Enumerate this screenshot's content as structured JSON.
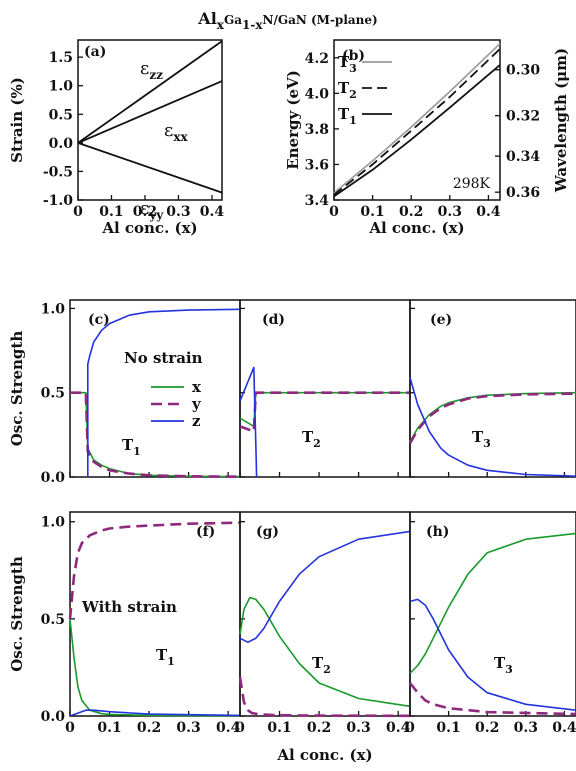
{
  "figure": {
    "title_parts": [
      "Al",
      "x",
      "Ga",
      "1-x",
      "N/GaN (M-plane)"
    ]
  },
  "colors": {
    "x": "#1a9a2a",
    "y": "#8e2a7e",
    "z": "#2233dd",
    "ink": "#111111",
    "t3_gray": "#999999"
  },
  "chart_data": [
    {
      "id": "a",
      "type": "line",
      "panel_label": "(a)",
      "xlabel": "Al conc. (x)",
      "ylabel": "Strain (%)",
      "xlim": [
        0,
        0.43
      ],
      "ylim": [
        -1.0,
        1.8
      ],
      "xticks": [
        "0",
        "0.1",
        "0.2",
        "0.3",
        "0.4"
      ],
      "yticks": [
        "-1.0",
        "-0.5",
        "0.0",
        "0.5",
        "1.0",
        "1.5"
      ],
      "series": [
        {
          "name": "ε_zz",
          "x": [
            0,
            0.43
          ],
          "y": [
            0.0,
            1.78
          ]
        },
        {
          "name": "ε_xx",
          "x": [
            0,
            0.43
          ],
          "y": [
            0.0,
            1.08
          ]
        },
        {
          "name": "ε_yy",
          "x": [
            0,
            0.43
          ],
          "y": [
            0.0,
            -0.87
          ]
        }
      ]
    },
    {
      "id": "b",
      "type": "line",
      "panel_label": "(b)",
      "xlabel": "Al conc. (x)",
      "ylabel": "Energy (eV)",
      "ylabel_right": "Wavelength (μm)",
      "xlim": [
        0,
        0.43
      ],
      "ylim": [
        3.4,
        4.3
      ],
      "xticks": [
        "0",
        "0.1",
        "0.2",
        "0.3",
        "0.4"
      ],
      "yticks": [
        "3.4",
        "3.6",
        "3.8",
        "4.0",
        "4.2"
      ],
      "yticks_right": [
        "0.30",
        "0.32",
        "0.34",
        "0.36"
      ],
      "annotation": "298K",
      "series": [
        {
          "name": "T3",
          "x": [
            0,
            0.1,
            0.2,
            0.3,
            0.43
          ],
          "y": [
            3.44,
            3.62,
            3.81,
            4.01,
            4.28
          ]
        },
        {
          "name": "T2",
          "x": [
            0,
            0.1,
            0.2,
            0.3,
            0.43
          ],
          "y": [
            3.43,
            3.6,
            3.79,
            3.98,
            4.25
          ]
        },
        {
          "name": "T1",
          "x": [
            0,
            0.1,
            0.2,
            0.3,
            0.43
          ],
          "y": [
            3.42,
            3.57,
            3.74,
            3.92,
            4.16
          ]
        }
      ]
    },
    {
      "id": "c",
      "type": "line",
      "panel_label": "(c)",
      "text": "No strain",
      "band": "T1",
      "ylabel": "Osc. Strength",
      "xlim": [
        0,
        0.43
      ],
      "ylim": [
        0,
        1.05
      ],
      "yticks": [
        "0.0",
        "0.5",
        "1.0"
      ],
      "legend": [
        "x",
        "y",
        "z"
      ],
      "series": [
        {
          "name": "x",
          "x": [
            0,
            0.04,
            0.045,
            0.06,
            0.08,
            0.1,
            0.15,
            0.2,
            0.3,
            0.43
          ],
          "y": [
            0.5,
            0.5,
            0.17,
            0.1,
            0.07,
            0.05,
            0.02,
            0.01,
            0.004,
            0.002
          ]
        },
        {
          "name": "y",
          "x": [
            0,
            0.04,
            0.045,
            0.06,
            0.08,
            0.1,
            0.15,
            0.2,
            0.3,
            0.43
          ],
          "y": [
            0.5,
            0.5,
            0.15,
            0.09,
            0.06,
            0.04,
            0.02,
            0.01,
            0.004,
            0.002
          ]
        },
        {
          "name": "z",
          "x": [
            0.045,
            0.045,
            0.05,
            0.06,
            0.08,
            0.1,
            0.15,
            0.2,
            0.3,
            0.43
          ],
          "y": [
            0,
            0.67,
            0.72,
            0.8,
            0.87,
            0.91,
            0.96,
            0.98,
            0.99,
            0.995
          ]
        }
      ]
    },
    {
      "id": "d",
      "type": "line",
      "panel_label": "(d)",
      "band": "T2",
      "xlim": [
        0,
        0.43
      ],
      "ylim": [
        0,
        1.05
      ],
      "series": [
        {
          "name": "x",
          "x": [
            0,
            0.035,
            0.04,
            0.1,
            0.2,
            0.43
          ],
          "y": [
            0.35,
            0.3,
            0.5,
            0.5,
            0.5,
            0.5
          ]
        },
        {
          "name": "y",
          "x": [
            0,
            0.035,
            0.04,
            0.1,
            0.2,
            0.43
          ],
          "y": [
            0.3,
            0.27,
            0.5,
            0.5,
            0.5,
            0.5
          ]
        },
        {
          "name": "z",
          "x": [
            0,
            0.035,
            0.04,
            0.042
          ],
          "y": [
            0.45,
            0.65,
            0.2,
            0.0
          ]
        }
      ]
    },
    {
      "id": "e",
      "type": "line",
      "panel_label": "(e)",
      "band": "T3",
      "xlim": [
        0,
        0.43
      ],
      "ylim": [
        0,
        1.05
      ],
      "series": [
        {
          "name": "x",
          "x": [
            0,
            0.02,
            0.05,
            0.08,
            0.1,
            0.15,
            0.2,
            0.3,
            0.43
          ],
          "y": [
            0.21,
            0.29,
            0.37,
            0.42,
            0.44,
            0.47,
            0.485,
            0.495,
            0.5
          ]
        },
        {
          "name": "y",
          "x": [
            0,
            0.02,
            0.05,
            0.08,
            0.1,
            0.15,
            0.2,
            0.3,
            0.43
          ],
          "y": [
            0.2,
            0.28,
            0.36,
            0.41,
            0.43,
            0.465,
            0.48,
            0.49,
            0.495
          ]
        },
        {
          "name": "z",
          "x": [
            0,
            0.02,
            0.05,
            0.08,
            0.1,
            0.15,
            0.2,
            0.3,
            0.43
          ],
          "y": [
            0.59,
            0.43,
            0.27,
            0.17,
            0.13,
            0.07,
            0.04,
            0.015,
            0.005
          ]
        }
      ]
    },
    {
      "id": "f",
      "type": "line",
      "panel_label": "(f)",
      "text": "With strain",
      "band": "T1",
      "ylabel": "Osc. Strength",
      "xlabel": "Al conc. (x)",
      "xlim": [
        0,
        0.43
      ],
      "ylim": [
        0,
        1.05
      ],
      "xticks": [
        "0",
        "0.1",
        "0.2",
        "0.3",
        "0.4"
      ],
      "yticks": [
        "0.0",
        "0.5",
        "1.0"
      ],
      "series": [
        {
          "name": "x",
          "x": [
            0,
            0.01,
            0.02,
            0.03,
            0.05,
            0.08,
            0.1,
            0.2,
            0.43
          ],
          "y": [
            0.5,
            0.3,
            0.15,
            0.08,
            0.03,
            0.012,
            0.008,
            0.003,
            0.001
          ]
        },
        {
          "name": "y",
          "x": [
            0,
            0.01,
            0.02,
            0.03,
            0.05,
            0.08,
            0.1,
            0.15,
            0.2,
            0.3,
            0.43
          ],
          "y": [
            0.5,
            0.72,
            0.84,
            0.89,
            0.93,
            0.955,
            0.965,
            0.975,
            0.98,
            0.99,
            0.995
          ]
        },
        {
          "name": "z",
          "x": [
            0,
            0.02,
            0.04,
            0.06,
            0.1,
            0.2,
            0.43
          ],
          "y": [
            0.0,
            0.015,
            0.03,
            0.03,
            0.022,
            0.01,
            0.003
          ]
        }
      ]
    },
    {
      "id": "g",
      "type": "line",
      "panel_label": "(g)",
      "band": "T2",
      "xlabel": "Al conc. (x)",
      "xlim": [
        0,
        0.43
      ],
      "ylim": [
        0,
        1.05
      ],
      "xticks": [
        "0",
        "0.1",
        "0.2",
        "0.3",
        "0.4"
      ],
      "series": [
        {
          "name": "x",
          "x": [
            0,
            0.01,
            0.025,
            0.04,
            0.06,
            0.08,
            0.1,
            0.15,
            0.2,
            0.3,
            0.43
          ],
          "y": [
            0.42,
            0.55,
            0.61,
            0.6,
            0.55,
            0.48,
            0.41,
            0.27,
            0.17,
            0.09,
            0.05
          ]
        },
        {
          "name": "y",
          "x": [
            0,
            0.01,
            0.02,
            0.03,
            0.05,
            0.1,
            0.2,
            0.43
          ],
          "y": [
            0.2,
            0.07,
            0.03,
            0.015,
            0.008,
            0.004,
            0.002,
            0.001
          ]
        },
        {
          "name": "z",
          "x": [
            0,
            0.02,
            0.04,
            0.06,
            0.08,
            0.1,
            0.15,
            0.2,
            0.3,
            0.43
          ],
          "y": [
            0.4,
            0.38,
            0.4,
            0.45,
            0.52,
            0.59,
            0.73,
            0.82,
            0.91,
            0.95
          ]
        }
      ]
    },
    {
      "id": "h",
      "type": "line",
      "panel_label": "(h)",
      "band": "T3",
      "xlabel": "Al conc. (x)",
      "xlim": [
        0,
        0.43
      ],
      "ylim": [
        0,
        1.05
      ],
      "xticks": [
        "0",
        "0.1",
        "0.2",
        "0.3",
        "0.4"
      ],
      "series": [
        {
          "name": "x",
          "x": [
            0,
            0.02,
            0.04,
            0.06,
            0.08,
            0.1,
            0.15,
            0.2,
            0.3,
            0.43
          ],
          "y": [
            0.22,
            0.26,
            0.32,
            0.4,
            0.48,
            0.56,
            0.73,
            0.84,
            0.91,
            0.94
          ]
        },
        {
          "name": "y",
          "x": [
            0,
            0.02,
            0.04,
            0.06,
            0.1,
            0.2,
            0.43
          ],
          "y": [
            0.17,
            0.12,
            0.08,
            0.06,
            0.04,
            0.02,
            0.01
          ]
        },
        {
          "name": "z",
          "x": [
            0,
            0.02,
            0.04,
            0.06,
            0.08,
            0.1,
            0.15,
            0.2,
            0.3,
            0.43
          ],
          "y": [
            0.59,
            0.6,
            0.57,
            0.5,
            0.42,
            0.34,
            0.2,
            0.12,
            0.06,
            0.03
          ]
        }
      ]
    }
  ]
}
